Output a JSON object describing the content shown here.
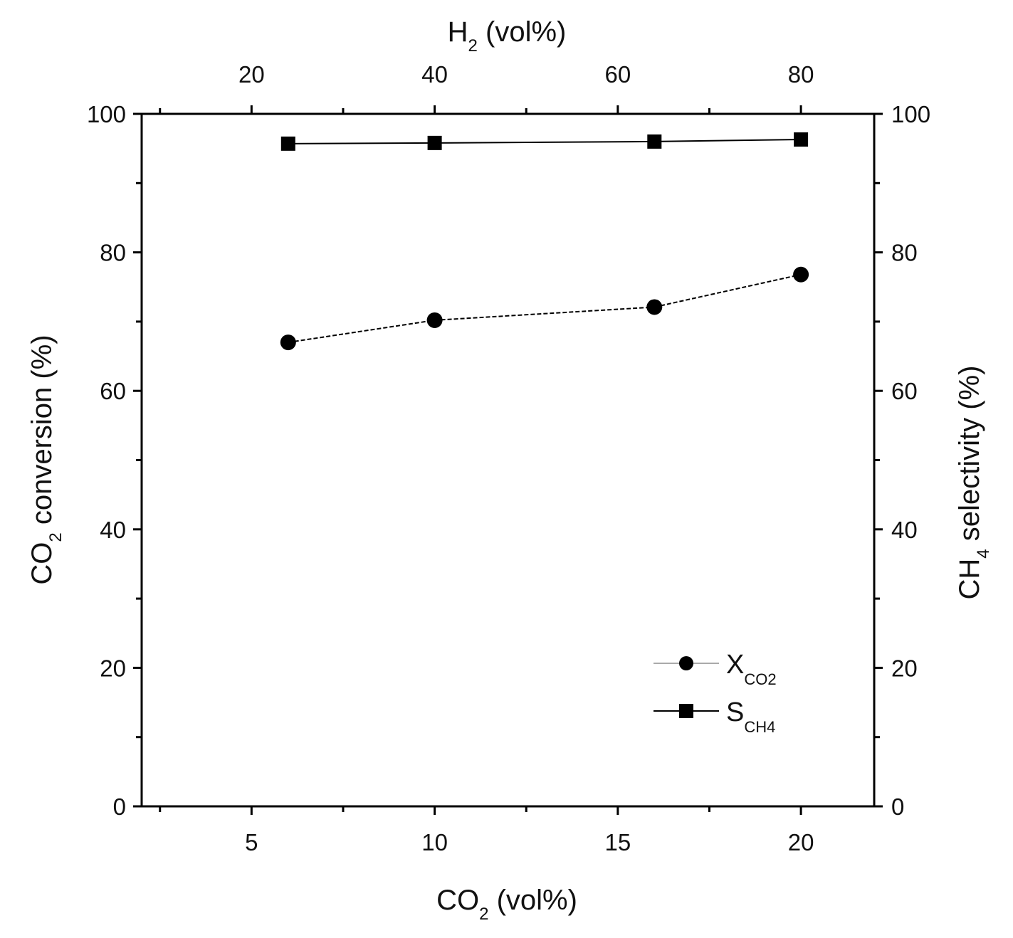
{
  "chart_data": {
    "type": "line",
    "x": [
      6,
      10,
      16,
      20
    ],
    "x_top": [
      24,
      40,
      64,
      80
    ],
    "series": [
      {
        "name": "X_CO2",
        "legend_main": "X",
        "legend_sub": "CO2",
        "axis": "left",
        "marker": "circle",
        "line_style": "dashed",
        "values": [
          67,
          70.2,
          72.1,
          76.8
        ]
      },
      {
        "name": "S_CH4",
        "legend_main": "S",
        "legend_sub": "CH4",
        "axis": "right",
        "marker": "square",
        "line_style": "solid",
        "values": [
          95.7,
          95.8,
          96.0,
          96.3
        ]
      }
    ],
    "xlabel": {
      "main": "CO",
      "sub": "2",
      "tail": " (vol%)"
    },
    "x_top_label": {
      "main": "H",
      "sub": "2",
      "tail": " (vol%)"
    },
    "ylabel_left": {
      "main": "CO",
      "sub": "2",
      "tail": " conversion (%)"
    },
    "ylabel_right": {
      "main": "CH",
      "sub": "4",
      "tail": " selectivity (%)"
    },
    "xlim": [
      2,
      22
    ],
    "x_top_lim": [
      8,
      88
    ],
    "ylim": [
      0,
      100
    ],
    "x_ticks": [
      "5",
      "10",
      "15",
      "20"
    ],
    "x_top_ticks": [
      "20",
      "40",
      "60",
      "80"
    ],
    "y_ticks": [
      "0",
      "20",
      "40",
      "60",
      "80",
      "100"
    ],
    "y_right_ticks": [
      "0",
      "20",
      "40",
      "60",
      "80",
      "100"
    ],
    "grid": false,
    "legend_position": "bottom-right"
  }
}
